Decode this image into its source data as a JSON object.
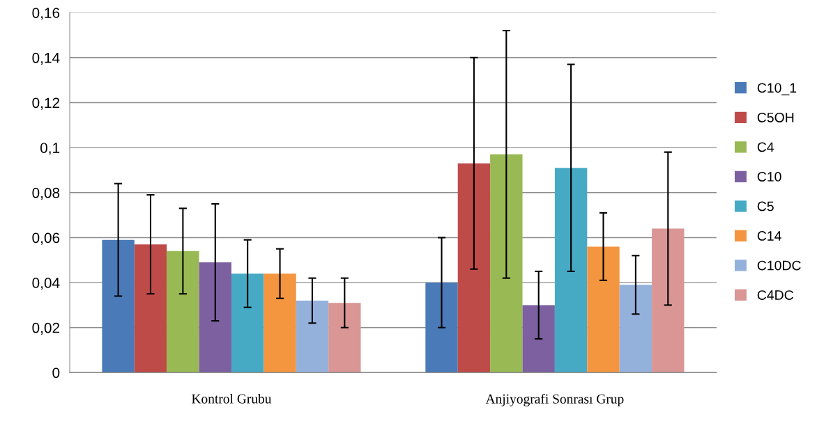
{
  "chart_data": {
    "type": "bar",
    "categories": [
      "Kontrol Grubu",
      "Anjiyografi Sonrası Grup"
    ],
    "series": [
      {
        "name": "C10_1",
        "color": "#4a7ab8",
        "values": [
          0.059,
          0.04
        ],
        "errors": [
          [
            0.034,
            0.084
          ],
          [
            0.02,
            0.06
          ]
        ]
      },
      {
        "name": "C5OH",
        "color": "#be4b48",
        "values": [
          0.057,
          0.093
        ],
        "errors": [
          [
            0.035,
            0.079
          ],
          [
            0.046,
            0.14
          ]
        ]
      },
      {
        "name": "C4",
        "color": "#98b954",
        "values": [
          0.054,
          0.097
        ],
        "errors": [
          [
            0.035,
            0.073
          ],
          [
            0.042,
            0.152
          ]
        ]
      },
      {
        "name": "C10",
        "color": "#7d60a0",
        "values": [
          0.049,
          0.03
        ],
        "errors": [
          [
            0.023,
            0.075
          ],
          [
            0.015,
            0.045
          ]
        ]
      },
      {
        "name": "C5",
        "color": "#46aac5",
        "values": [
          0.044,
          0.091
        ],
        "errors": [
          [
            0.029,
            0.059
          ],
          [
            0.045,
            0.137
          ]
        ]
      },
      {
        "name": "C14",
        "color": "#f49540",
        "values": [
          0.044,
          0.056
        ],
        "errors": [
          [
            0.033,
            0.055
          ],
          [
            0.041,
            0.071
          ]
        ]
      },
      {
        "name": "C10DC",
        "color": "#94b1dc",
        "values": [
          0.032,
          0.039
        ],
        "errors": [
          [
            0.022,
            0.042
          ],
          [
            0.026,
            0.052
          ]
        ]
      },
      {
        "name": "C4DC",
        "color": "#d99694",
        "values": [
          0.031,
          0.064
        ],
        "errors": [
          [
            0.02,
            0.042
          ],
          [
            0.03,
            0.098
          ]
        ]
      }
    ],
    "ylim": [
      0,
      0.16
    ],
    "yticks": [
      {
        "value": 0,
        "label": "0"
      },
      {
        "value": 0.02,
        "label": "0,02"
      },
      {
        "value": 0.04,
        "label": "0,04"
      },
      {
        "value": 0.06,
        "label": "0,06"
      },
      {
        "value": 0.08,
        "label": "0,08"
      },
      {
        "value": 0.1,
        "label": "0,1"
      },
      {
        "value": 0.12,
        "label": "0,12"
      },
      {
        "value": 0.14,
        "label": "0,14"
      },
      {
        "value": 0.16,
        "label": "0,16"
      }
    ],
    "grid": "y",
    "legend": "right"
  }
}
